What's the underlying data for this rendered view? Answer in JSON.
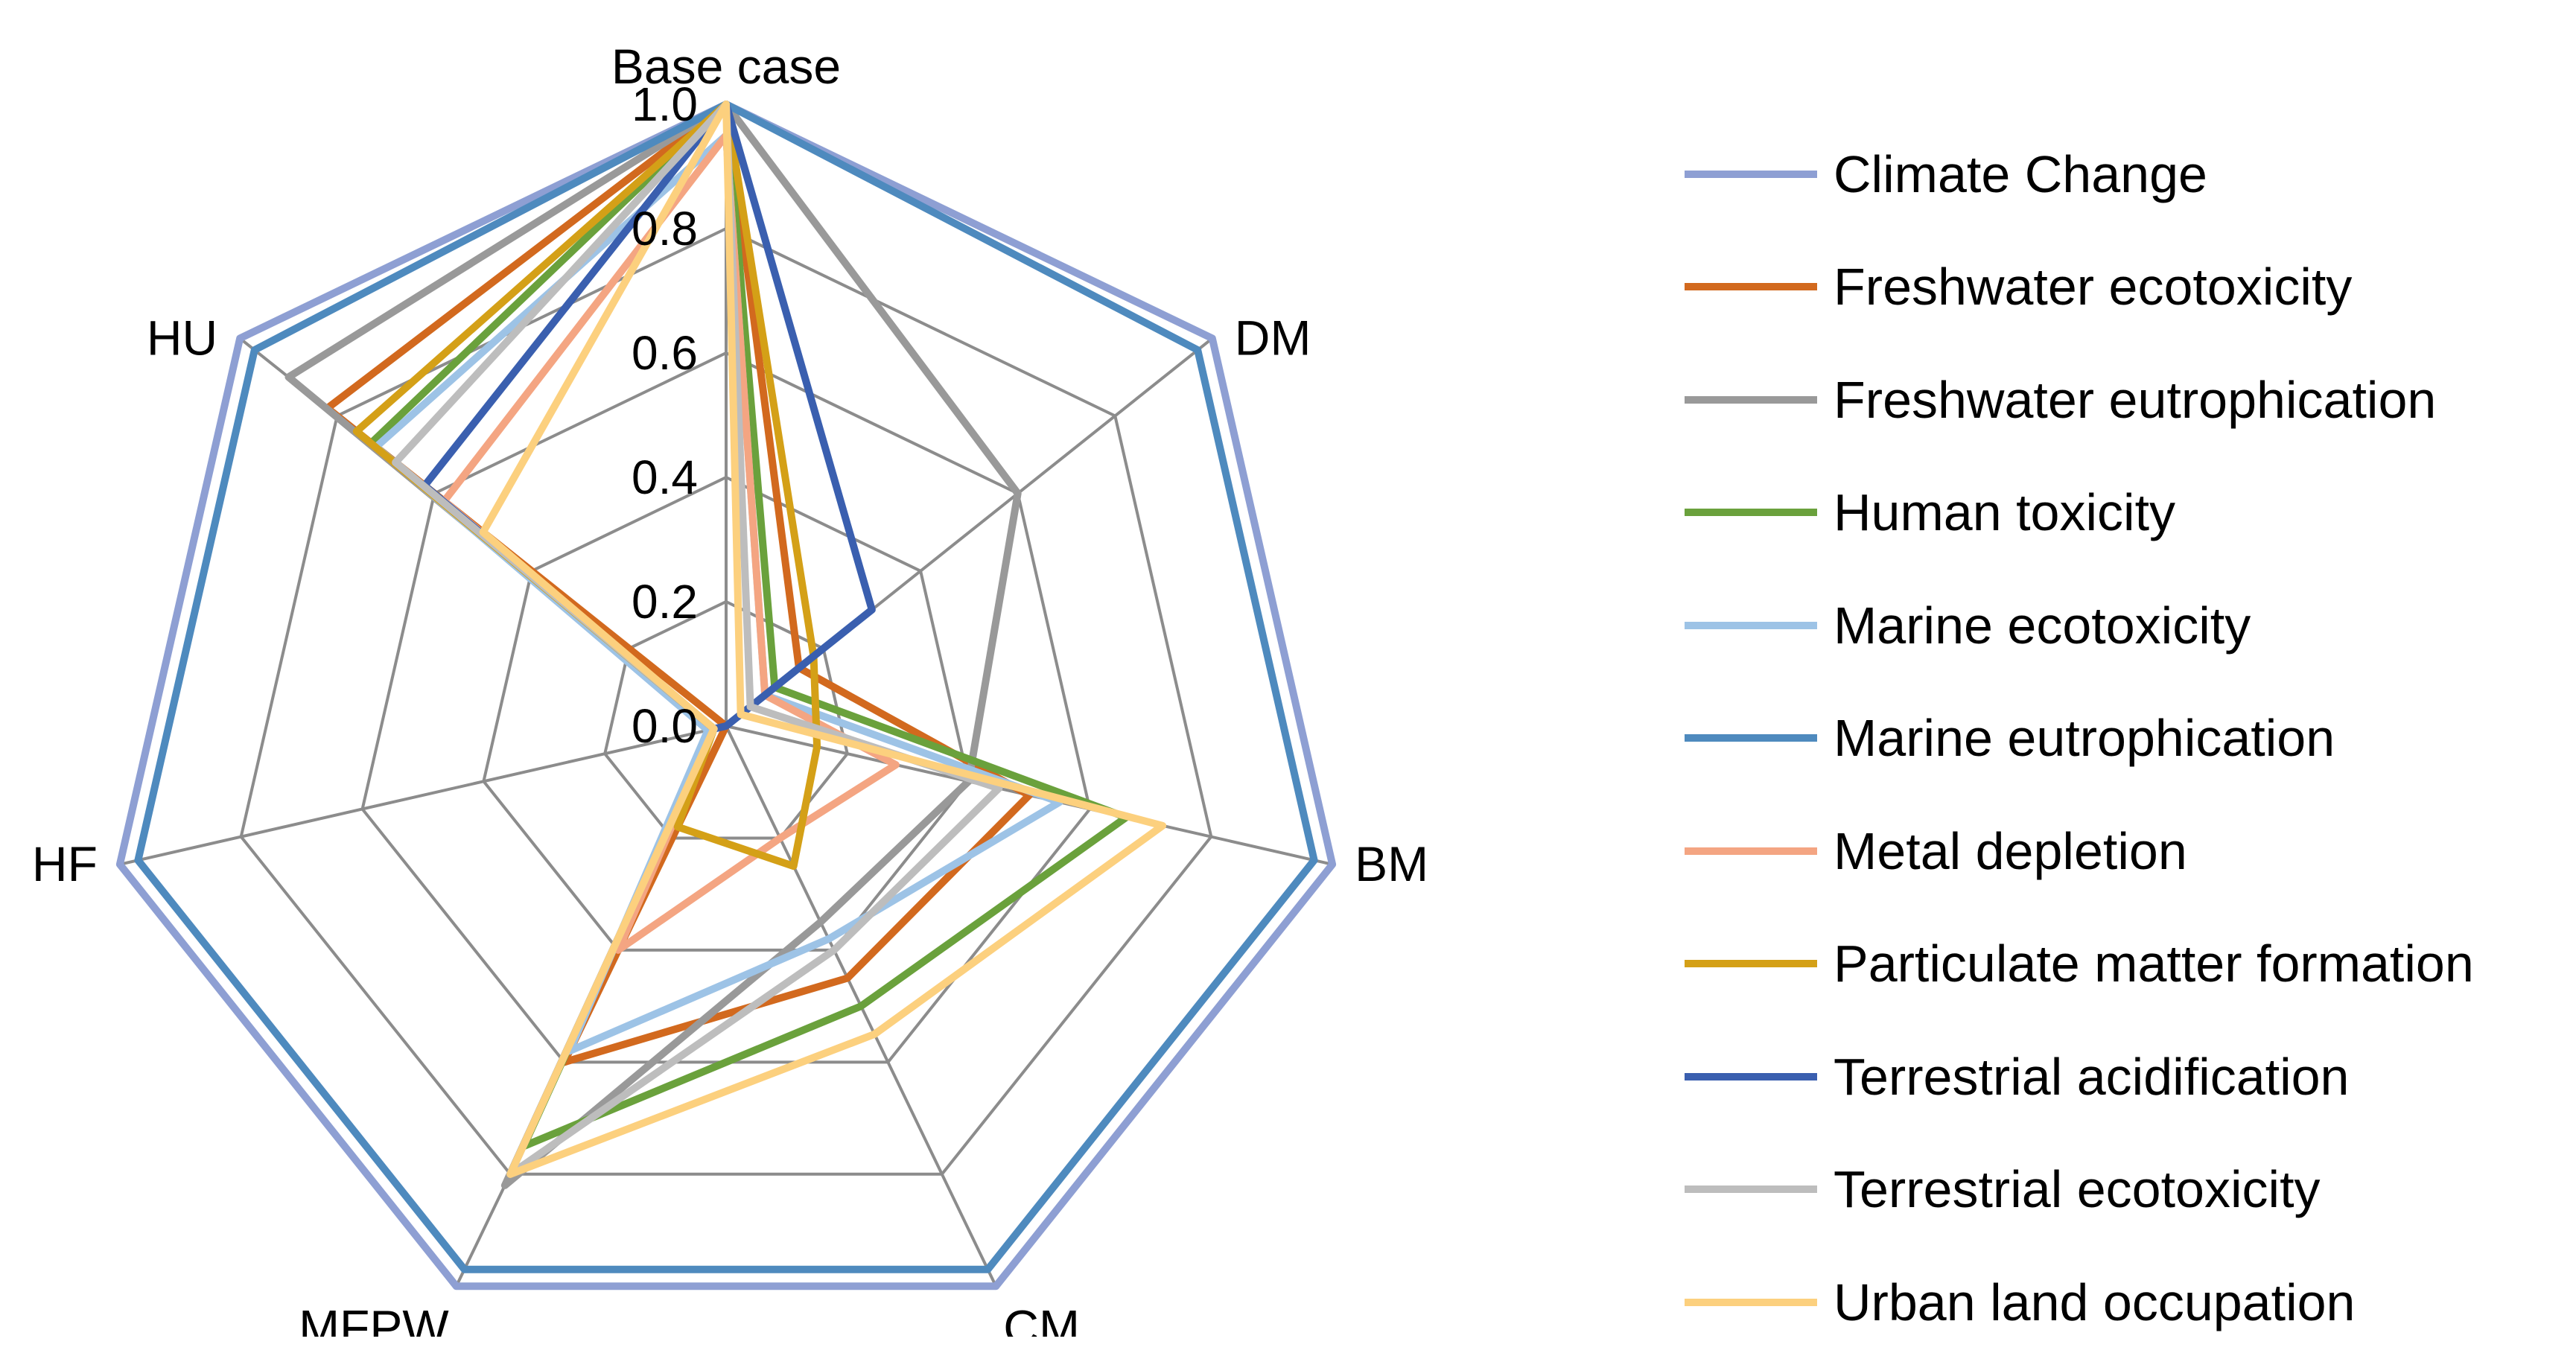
{
  "chart_data": {
    "type": "radar",
    "title": "",
    "axes": [
      "Base case",
      "DM",
      "BM",
      "CM",
      "MFPW",
      "HF",
      "HU"
    ],
    "range": [
      0,
      1
    ],
    "ticks": [
      "0.0",
      "0.2",
      "0.4",
      "0.6",
      "0.8",
      "1.0"
    ],
    "series": [
      {
        "name": "Climate Change",
        "color": "#8E9FD3",
        "values": [
          1.0,
          1.0,
          1.0,
          1.0,
          1.0,
          1.0,
          1.0
        ]
      },
      {
        "name": "Freshwater ecotoxicity",
        "color": "#D2691E",
        "values": [
          1.0,
          0.15,
          0.5,
          0.45,
          0.6,
          0.0,
          0.82
        ]
      },
      {
        "name": "Freshwater eutrophication",
        "color": "#999999",
        "values": [
          1.0,
          0.6,
          0.4,
          0.35,
          0.82,
          0.02,
          0.9
        ]
      },
      {
        "name": "Human toxicity",
        "color": "#6AA13C",
        "values": [
          1.0,
          0.1,
          0.66,
          0.5,
          0.75,
          0.02,
          0.73
        ]
      },
      {
        "name": "Marine ecotoxicity",
        "color": "#9DC3E6",
        "values": [
          0.95,
          0.08,
          0.55,
          0.38,
          0.58,
          0.03,
          0.72
        ]
      },
      {
        "name": "Marine eutrophication",
        "color": "#4E8ABE",
        "values": [
          1.0,
          0.97,
          0.97,
          0.97,
          0.97,
          0.97,
          0.97
        ]
      },
      {
        "name": "Metal depletion",
        "color": "#F4A582",
        "values": [
          0.95,
          0.08,
          0.28,
          0.2,
          0.4,
          0.02,
          0.58
        ]
      },
      {
        "name": "Particulate matter formation",
        "color": "#D4A017",
        "values": [
          1.0,
          0.18,
          0.15,
          0.25,
          0.18,
          0.02,
          0.76
        ]
      },
      {
        "name": "Terrestrial acidification",
        "color": "#3A5FAF",
        "values": [
          1.0,
          0.3,
          0.0,
          0.0,
          0.0,
          0.02,
          0.62
        ]
      },
      {
        "name": "Terrestrial ecotoxicity",
        "color": "#BDBDBD",
        "values": [
          1.0,
          0.05,
          0.45,
          0.4,
          0.8,
          0.02,
          0.68
        ]
      },
      {
        "name": "Urban land occupation",
        "color": "#FCD07E",
        "values": [
          1.0,
          0.03,
          0.72,
          0.55,
          0.8,
          0.02,
          0.5
        ]
      }
    ]
  }
}
